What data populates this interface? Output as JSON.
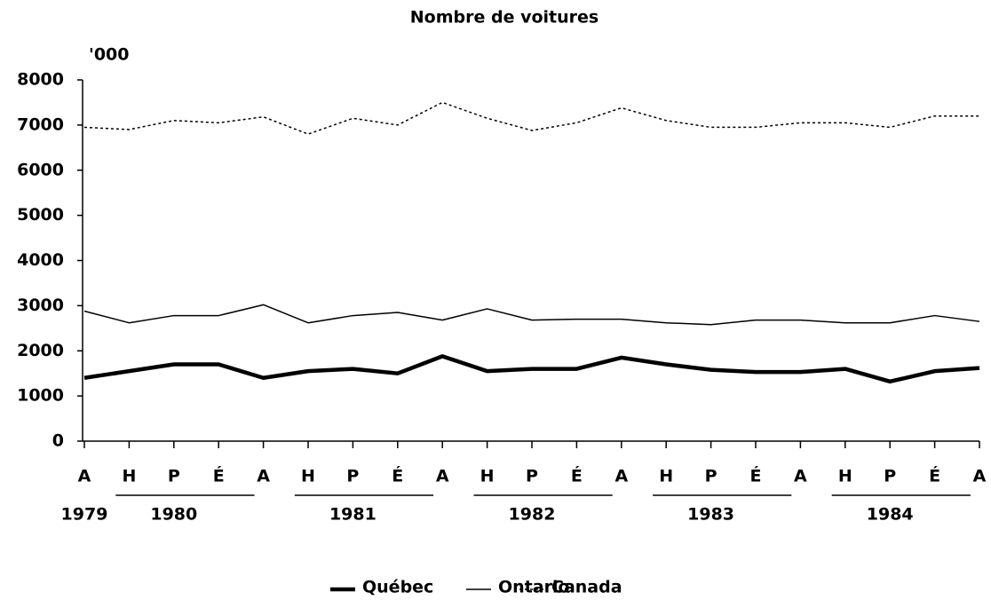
{
  "chart_data": {
    "type": "line",
    "title": "Nombre de voitures",
    "y_unit": "'000",
    "categories": [
      "A",
      "H",
      "P",
      "É",
      "A",
      "H",
      "P",
      "É",
      "A",
      "H",
      "P",
      "É",
      "A",
      "H",
      "P",
      "É",
      "A",
      "H",
      "P",
      "É",
      "A"
    ],
    "x_groups": [
      {
        "label": "1979",
        "start": 0,
        "end": 0
      },
      {
        "label": "1980",
        "start": 1,
        "end": 4
      },
      {
        "label": "1981",
        "start": 5,
        "end": 8
      },
      {
        "label": "1982",
        "start": 9,
        "end": 12
      },
      {
        "label": "1983",
        "start": 13,
        "end": 16
      },
      {
        "label": "1984",
        "start": 17,
        "end": 20
      }
    ],
    "series": [
      {
        "name": "Québec",
        "color": "#000000",
        "line_style": "thick",
        "values": [
          1400,
          1550,
          1700,
          1700,
          1400,
          1550,
          1600,
          1500,
          1880,
          1550,
          1600,
          1600,
          1850,
          1700,
          1580,
          1530,
          1530,
          1600,
          1320,
          1550,
          1620
        ]
      },
      {
        "name": "Ontario",
        "color": "#000000",
        "line_style": "solid",
        "values": [
          2880,
          2620,
          2780,
          2780,
          3020,
          2620,
          2780,
          2850,
          2680,
          2930,
          2680,
          2700,
          2700,
          2620,
          2580,
          2680,
          2680,
          2620,
          2620,
          2780,
          2650
        ]
      },
      {
        "name": "Canada",
        "color": "#000000",
        "line_style": "dashed",
        "values": [
          6950,
          6900,
          7100,
          7050,
          7180,
          6800,
          7150,
          7000,
          7500,
          7150,
          6880,
          7050,
          7380,
          7100,
          6950,
          6950,
          7050,
          7050,
          6950,
          7200,
          7200
        ]
      }
    ],
    "ylim": [
      0,
      8000
    ],
    "yticks": [
      0,
      1000,
      2000,
      3000,
      4000,
      5000,
      6000,
      7000,
      8000
    ],
    "grid": false,
    "legend": "bottom"
  }
}
